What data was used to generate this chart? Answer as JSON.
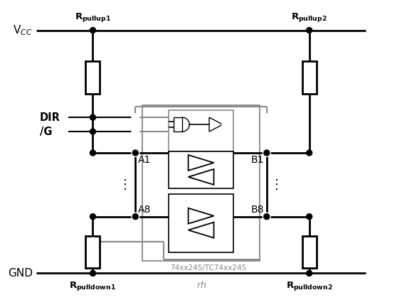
{
  "bg_color": "#ffffff",
  "lc": "#000000",
  "gc": "#888888",
  "vcc_label": "V$_{CC}$",
  "gnd_label": "GND",
  "dir_label": "DIR",
  "g_label": "/G",
  "a1_label": "A1",
  "a8_label": "A8",
  "b1_label": "B1",
  "b8_label": "B8",
  "r_pullup1": "$\\mathbf{R_{pullup1}}$",
  "r_pullup2": "$\\mathbf{R_{pullup2}}$",
  "r_pulldown1": "$\\mathbf{R_{pulldown1}}$",
  "r_pulldown2": "$\\mathbf{R_{pulldown2}}$",
  "ic_label": "74xx245/TC74xx245",
  "dots": "⋮"
}
